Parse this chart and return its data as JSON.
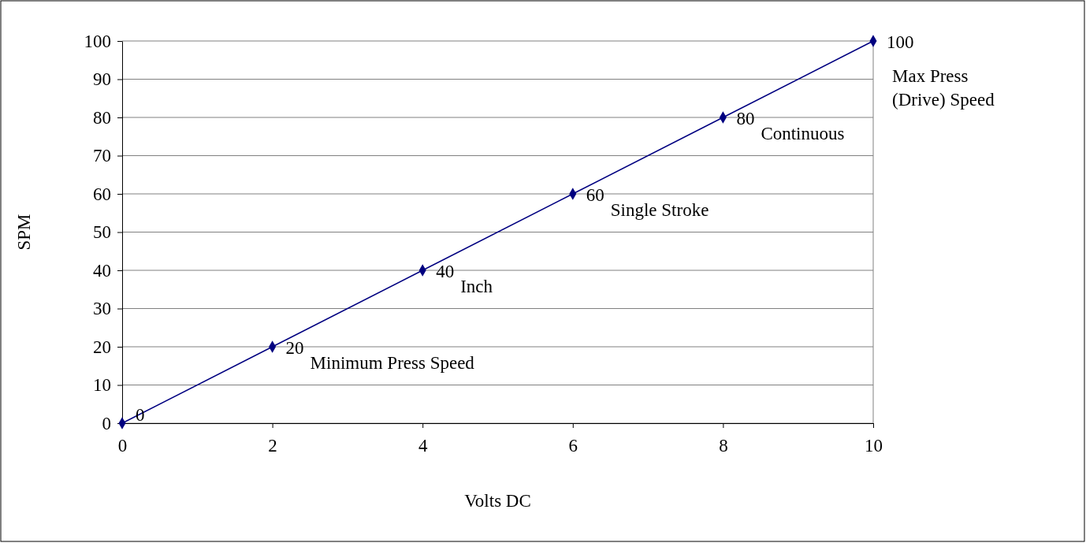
{
  "chart_data": {
    "type": "line",
    "xlabel": "Volts DC",
    "ylabel": "SPM",
    "x": [
      0,
      2,
      4,
      6,
      8,
      10
    ],
    "series": [
      {
        "color": "#000080",
        "values": [
          0,
          20,
          40,
          60,
          80,
          100
        ]
      }
    ],
    "xlim": [
      0,
      10
    ],
    "xticks": [
      0,
      2,
      4,
      6,
      8,
      10
    ],
    "ylim": [
      0,
      100
    ],
    "yticks": [
      0,
      10,
      20,
      30,
      40,
      50,
      60,
      70,
      80,
      90,
      100
    ],
    "grid": "y",
    "marker": "diamond",
    "line_style": "solid",
    "data_labels": true,
    "annotations": [
      {
        "text": "Minimum Press Speed",
        "x": 2,
        "y": 20
      },
      {
        "text": "Inch",
        "x": 4,
        "y": 40
      },
      {
        "text": "Single Stroke",
        "x": 6,
        "y": 60
      },
      {
        "text": "Continuous",
        "x": 8,
        "y": 80
      },
      {
        "text": "Max Press\n(Drive) Speed",
        "x": 10,
        "y": 100
      }
    ]
  }
}
